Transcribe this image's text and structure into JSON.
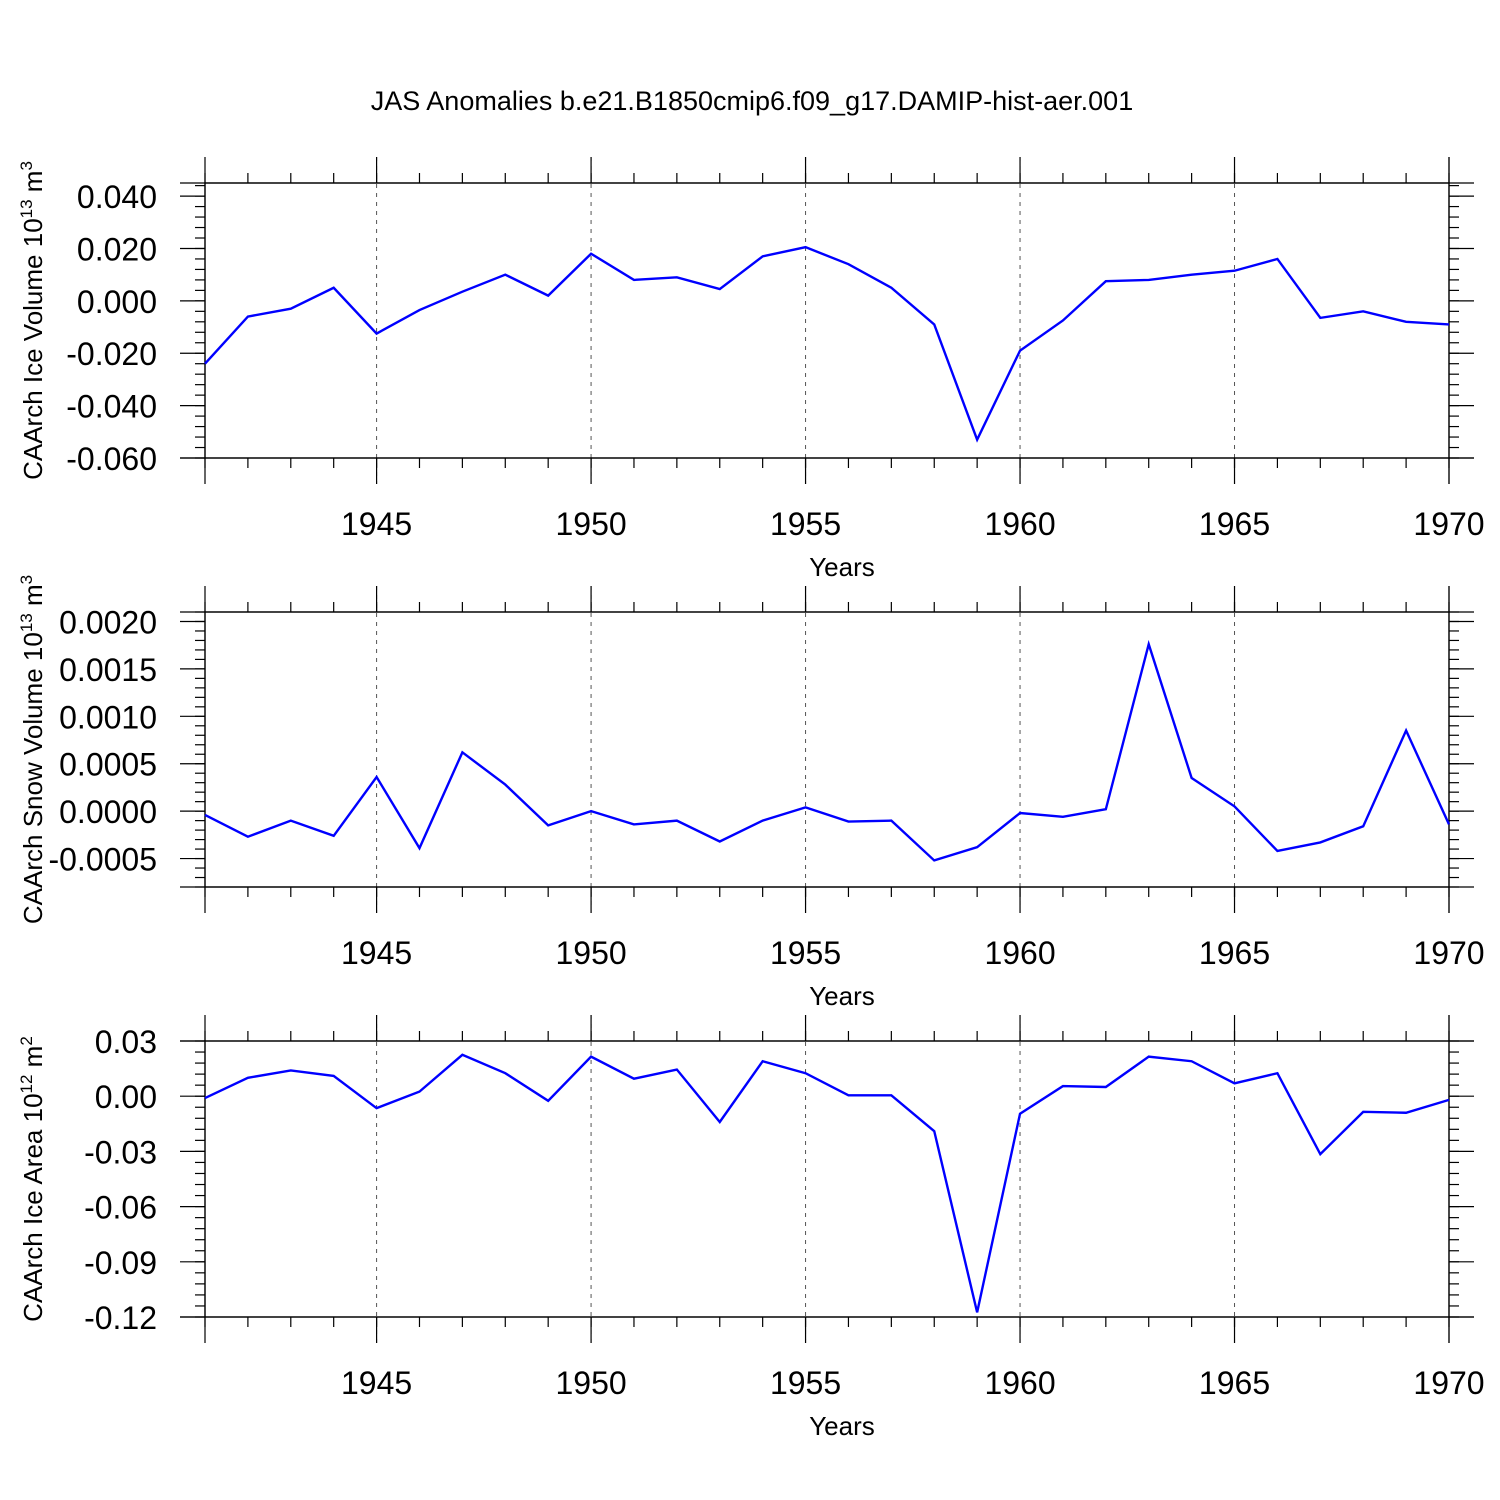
{
  "chart_data": {
    "title": "JAS Anomalies b.e21.B1850cmip6.f09_g17.DAMIP-hist-aer.001",
    "line_color": "#0000ff",
    "panels": [
      {
        "type": "line",
        "ylabel": "CAArch Ice Volume 10",
        "ylabel_exp": "13",
        "ylabel_unit": " m",
        "ylabel_unit_exp": "3",
        "xlabel": "Years",
        "xlim": [
          1941,
          1970
        ],
        "ylim": [
          -0.06,
          0.045
        ],
        "yticks": [
          -0.06,
          -0.04,
          -0.02,
          0.0,
          0.02,
          0.04
        ],
        "ytick_labels": [
          "-0.060",
          "-0.040",
          "-0.020",
          "0.000",
          "0.020",
          "0.040"
        ],
        "xticks": [
          1945,
          1950,
          1955,
          1960,
          1965,
          1970
        ],
        "xtick_labels": [
          "1945",
          "1950",
          "1955",
          "1960",
          "1965",
          "1970"
        ],
        "grid_x": [
          1945,
          1950,
          1955,
          1960,
          1965
        ],
        "x": [
          1941,
          1942,
          1943,
          1944,
          1945,
          1946,
          1947,
          1948,
          1949,
          1950,
          1951,
          1952,
          1953,
          1954,
          1955,
          1956,
          1957,
          1958,
          1959,
          1960,
          1961,
          1962,
          1963,
          1964,
          1965,
          1966,
          1967,
          1968,
          1969,
          1970
        ],
        "values": [
          -0.024,
          -0.006,
          -0.003,
          0.005,
          -0.0125,
          -0.0035,
          0.0035,
          0.01,
          0.002,
          0.018,
          0.008,
          0.009,
          0.0045,
          0.017,
          0.0205,
          0.014,
          0.005,
          -0.009,
          -0.053,
          -0.019,
          -0.0075,
          0.0075,
          0.008,
          0.01,
          0.0115,
          0.016,
          -0.0065,
          -0.004,
          -0.008,
          -0.009
        ]
      },
      {
        "type": "line",
        "ylabel": "CAArch Snow Volume 10",
        "ylabel_exp": "13",
        "ylabel_unit": " m",
        "ylabel_unit_exp": "3",
        "xlabel": "Years",
        "xlim": [
          1941,
          1970
        ],
        "ylim": [
          -0.0008,
          0.0021
        ],
        "yticks": [
          -0.0005,
          0.0,
          0.0005,
          0.001,
          0.0015,
          0.002
        ],
        "ytick_labels": [
          "-0.0005",
          "0.0000",
          "0.0005",
          "0.0010",
          "0.0015",
          "0.0020"
        ],
        "xticks": [
          1945,
          1950,
          1955,
          1960,
          1965,
          1970
        ],
        "xtick_labels": [
          "1945",
          "1950",
          "1955",
          "1960",
          "1965",
          "1970"
        ],
        "grid_x": [
          1945,
          1950,
          1955,
          1960,
          1965
        ],
        "x": [
          1941,
          1942,
          1943,
          1944,
          1945,
          1946,
          1947,
          1948,
          1949,
          1950,
          1951,
          1952,
          1953,
          1954,
          1955,
          1956,
          1957,
          1958,
          1959,
          1960,
          1961,
          1962,
          1963,
          1964,
          1965,
          1966,
          1967,
          1968,
          1969,
          1970
        ],
        "values": [
          -4e-05,
          -0.00027,
          -0.0001,
          -0.00026,
          0.00036,
          -0.00039,
          0.00062,
          0.00028,
          -0.00015,
          0.0,
          -0.00014,
          -0.0001,
          -0.00032,
          -0.0001,
          4e-05,
          -0.00011,
          -0.0001,
          -0.00052,
          -0.00038,
          -2e-05,
          -6e-05,
          2e-05,
          0.00176,
          0.00035,
          5e-05,
          -0.00042,
          -0.00033,
          -0.00016,
          0.00085,
          -0.00014
        ]
      },
      {
        "type": "line",
        "ylabel": "CAArch Ice Area 10",
        "ylabel_exp": "12",
        "ylabel_unit": " m",
        "ylabel_unit_exp": "2",
        "xlabel": "Years",
        "xlim": [
          1941,
          1970
        ],
        "ylim": [
          -0.12,
          0.03
        ],
        "yticks": [
          -0.12,
          -0.09,
          -0.06,
          -0.03,
          0.0,
          0.03
        ],
        "ytick_labels": [
          "-0.12",
          "-0.09",
          "-0.06",
          "-0.03",
          "0.00",
          "0.03"
        ],
        "xticks": [
          1945,
          1950,
          1955,
          1960,
          1965,
          1970
        ],
        "xtick_labels": [
          "1945",
          "1950",
          "1955",
          "1960",
          "1965",
          "1970"
        ],
        "grid_x": [
          1945,
          1950,
          1955,
          1960,
          1965
        ],
        "x": [
          1941,
          1942,
          1943,
          1944,
          1945,
          1946,
          1947,
          1948,
          1949,
          1950,
          1951,
          1952,
          1953,
          1954,
          1955,
          1956,
          1957,
          1958,
          1959,
          1960,
          1961,
          1962,
          1963,
          1964,
          1965,
          1966,
          1967,
          1968,
          1969,
          1970
        ],
        "values": [
          -0.001,
          0.01,
          0.014,
          0.011,
          -0.0065,
          0.0025,
          0.0225,
          0.0125,
          -0.0025,
          0.0215,
          0.0095,
          0.0145,
          -0.014,
          0.019,
          0.0125,
          0.0005,
          0.0005,
          -0.019,
          -0.1175,
          -0.0095,
          0.0055,
          0.005,
          0.0215,
          0.019,
          0.007,
          0.0125,
          -0.0315,
          -0.0085,
          -0.009,
          -0.002
        ]
      }
    ]
  }
}
